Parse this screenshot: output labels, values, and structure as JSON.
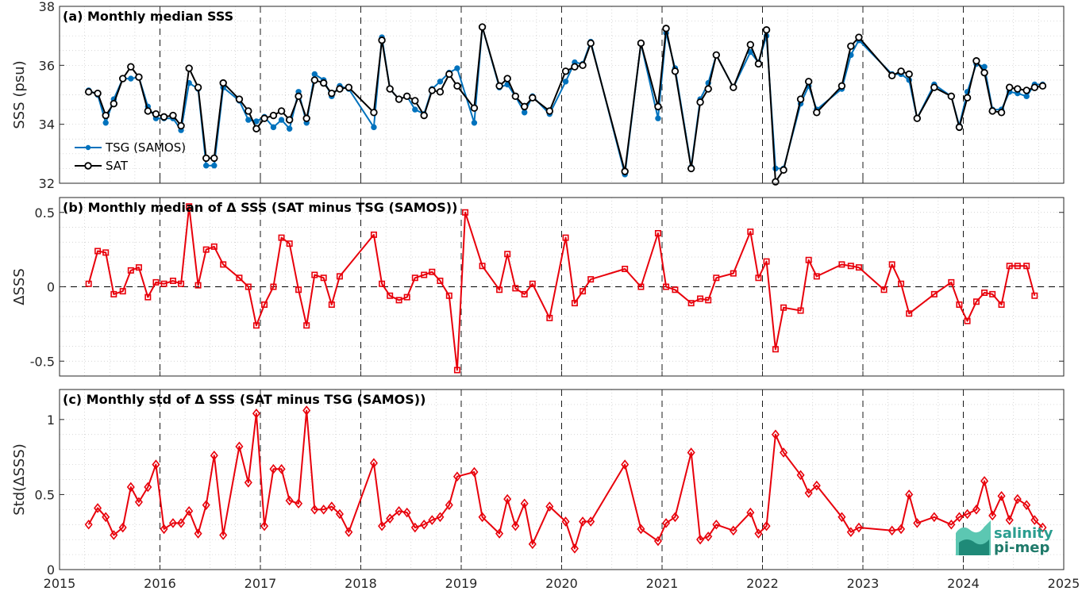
{
  "chart_data": [
    {
      "type": "line",
      "title": "(a) Monthly median SSS",
      "ylabel": "SSS (psu)",
      "xlim": [
        2015,
        2025
      ],
      "ylim": [
        32,
        38
      ],
      "yticks": [
        32,
        34,
        36,
        38
      ],
      "ytick_labels": [
        "32",
        "34",
        "36",
        "38"
      ],
      "grid": true,
      "legend": "left",
      "series": [
        {
          "name": "TSG (SAMOS)",
          "color": "#0072BD",
          "marker": "dot",
          "x": [
            2015.29,
            2015.38,
            2015.46,
            2015.54,
            2015.63,
            2015.71,
            2015.79,
            2015.88,
            2015.96,
            2016.04,
            2016.13,
            2016.21,
            2016.29,
            2016.38,
            2016.46,
            2016.54,
            2016.63,
            2016.79,
            2016.88,
            2016.96,
            2017.04,
            2017.13,
            2017.21,
            2017.29,
            2017.38,
            2017.46,
            2017.54,
            2017.63,
            2017.71,
            2017.79,
            2017.88,
            2018.13,
            2018.21,
            2018.29,
            2018.38,
            2018.46,
            2018.54,
            2018.63,
            2018.71,
            2018.79,
            2018.88,
            2018.96,
            2019.13,
            2019.21,
            2019.38,
            2019.46,
            2019.54,
            2019.63,
            2019.71,
            2019.88,
            2020.04,
            2020.13,
            2020.21,
            2020.29,
            2020.63,
            2020.79,
            2020.96,
            2021.04,
            2021.13,
            2021.29,
            2021.38,
            2021.46,
            2021.54,
            2021.71,
            2021.88,
            2021.96,
            2022.04,
            2022.13,
            2022.21,
            2022.38,
            2022.46,
            2022.54,
            2022.79,
            2022.88,
            2022.96,
            2023.29,
            2023.38,
            2023.46,
            2023.54,
            2023.71,
            2023.88,
            2023.96,
            2024.04,
            2024.13,
            2024.21,
            2024.29,
            2024.38,
            2024.46,
            2024.54,
            2024.63,
            2024.71,
            2024.79
          ],
          "y": [
            35.15,
            35.0,
            34.05,
            34.85,
            35.55,
            35.55,
            35.6,
            34.6,
            34.2,
            34.2,
            34.2,
            33.8,
            35.4,
            35.2,
            32.6,
            32.6,
            35.25,
            34.8,
            34.15,
            34.1,
            34.25,
            33.9,
            34.15,
            33.85,
            35.1,
            34.05,
            35.7,
            35.5,
            34.95,
            35.3,
            35.2,
            33.9,
            36.95,
            35.2,
            34.85,
            34.95,
            34.5,
            34.35,
            35.2,
            35.45,
            35.75,
            35.9,
            34.05,
            37.3,
            35.25,
            35.35,
            34.95,
            34.4,
            34.95,
            34.35,
            35.45,
            36.1,
            36.05,
            36.8,
            32.3,
            36.75,
            34.2,
            37.1,
            35.9,
            32.55,
            34.85,
            35.4,
            36.35,
            35.25,
            36.45,
            36.1,
            37.0,
            32.5,
            32.5,
            34.7,
            35.3,
            34.5,
            35.2,
            36.35,
            36.85,
            35.7,
            35.7,
            35.5,
            34.2,
            35.35,
            34.95,
            33.95,
            35.1,
            36.05,
            35.95,
            34.5,
            34.5,
            35.1,
            35.05,
            34.95,
            35.35,
            35.35
          ]
        },
        {
          "name": "SAT",
          "color": "#000000",
          "marker": "circle",
          "x": [
            2015.29,
            2015.38,
            2015.46,
            2015.54,
            2015.63,
            2015.71,
            2015.79,
            2015.88,
            2015.96,
            2016.04,
            2016.13,
            2016.21,
            2016.29,
            2016.38,
            2016.46,
            2016.54,
            2016.63,
            2016.79,
            2016.88,
            2016.96,
            2017.04,
            2017.13,
            2017.21,
            2017.29,
            2017.38,
            2017.46,
            2017.54,
            2017.63,
            2017.71,
            2017.79,
            2017.88,
            2018.13,
            2018.21,
            2018.29,
            2018.38,
            2018.46,
            2018.54,
            2018.63,
            2018.71,
            2018.79,
            2018.88,
            2018.96,
            2019.13,
            2019.21,
            2019.38,
            2019.46,
            2019.54,
            2019.63,
            2019.71,
            2019.88,
            2020.04,
            2020.13,
            2020.21,
            2020.29,
            2020.63,
            2020.79,
            2020.96,
            2021.04,
            2021.13,
            2021.29,
            2021.38,
            2021.46,
            2021.54,
            2021.71,
            2021.88,
            2021.96,
            2022.04,
            2022.13,
            2022.21,
            2022.38,
            2022.46,
            2022.54,
            2022.79,
            2022.88,
            2022.96,
            2023.29,
            2023.38,
            2023.46,
            2023.54,
            2023.71,
            2023.88,
            2023.96,
            2024.04,
            2024.13,
            2024.21,
            2024.29,
            2024.38,
            2024.46,
            2024.54,
            2024.63,
            2024.71,
            2024.79
          ],
          "y": [
            35.1,
            35.05,
            34.3,
            34.7,
            35.55,
            35.95,
            35.6,
            34.45,
            34.35,
            34.25,
            34.3,
            33.95,
            35.9,
            35.25,
            32.85,
            32.85,
            35.4,
            34.85,
            34.45,
            33.85,
            34.2,
            34.3,
            34.45,
            34.15,
            34.95,
            34.2,
            35.5,
            35.4,
            35.05,
            35.2,
            35.25,
            34.4,
            36.85,
            35.2,
            34.85,
            34.95,
            34.8,
            34.3,
            35.15,
            35.1,
            35.7,
            35.3,
            34.55,
            37.3,
            35.3,
            35.55,
            34.95,
            34.6,
            34.9,
            34.45,
            35.8,
            35.95,
            36.0,
            36.75,
            32.4,
            36.75,
            34.6,
            37.25,
            35.8,
            32.5,
            34.75,
            35.2,
            36.35,
            35.25,
            36.7,
            36.05,
            37.2,
            32.05,
            32.45,
            34.85,
            35.45,
            34.4,
            35.3,
            36.65,
            36.95,
            35.65,
            35.8,
            35.7,
            34.2,
            35.25,
            34.95,
            33.9,
            34.9,
            36.15,
            35.75,
            34.45,
            34.4,
            35.25,
            35.2,
            35.15,
            35.25,
            35.3
          ]
        }
      ]
    },
    {
      "type": "line",
      "title": "(b) Monthly median of Δ SSS (SAT minus TSG (SAMOS))",
      "ylabel": "ΔSSS",
      "xlim": [
        2015,
        2025
      ],
      "ylim": [
        -0.6,
        0.6
      ],
      "yticks": [
        -0.5,
        0,
        0.5
      ],
      "ytick_labels": [
        "-0.5",
        "0",
        "0.5"
      ],
      "grid": true,
      "zero_line": true,
      "series": [
        {
          "name": "",
          "color": "#E8000B",
          "marker": "square",
          "x": [
            2015.29,
            2015.38,
            2015.46,
            2015.54,
            2015.63,
            2015.71,
            2015.79,
            2015.88,
            2015.96,
            2016.04,
            2016.13,
            2016.21,
            2016.29,
            2016.38,
            2016.46,
            2016.54,
            2016.63,
            2016.79,
            2016.88,
            2016.96,
            2017.04,
            2017.13,
            2017.21,
            2017.29,
            2017.38,
            2017.46,
            2017.54,
            2017.63,
            2017.71,
            2017.79,
            2018.13,
            2018.21,
            2018.29,
            2018.38,
            2018.46,
            2018.54,
            2018.63,
            2018.71,
            2018.79,
            2018.88,
            2018.96,
            2019.04,
            2019.21,
            2019.38,
            2019.46,
            2019.54,
            2019.63,
            2019.71,
            2019.88,
            2020.04,
            2020.13,
            2020.21,
            2020.29,
            2020.63,
            2020.79,
            2020.96,
            2021.04,
            2021.13,
            2021.29,
            2021.38,
            2021.46,
            2021.54,
            2021.71,
            2021.88,
            2021.96,
            2022.04,
            2022.13,
            2022.21,
            2022.38,
            2022.46,
            2022.54,
            2022.79,
            2022.88,
            2022.96,
            2023.21,
            2023.29,
            2023.38,
            2023.46,
            2023.71,
            2023.88,
            2023.96,
            2024.04,
            2024.13,
            2024.21,
            2024.29,
            2024.38,
            2024.46,
            2024.54,
            2024.63,
            2024.71
          ],
          "y": [
            0.02,
            0.24,
            0.23,
            -0.05,
            -0.03,
            0.11,
            0.13,
            -0.07,
            0.03,
            0.02,
            0.04,
            0.02,
            0.54,
            0.01,
            0.25,
            0.27,
            0.15,
            0.06,
            0.0,
            -0.26,
            -0.12,
            0.0,
            0.33,
            0.29,
            -0.02,
            -0.26,
            0.08,
            0.06,
            -0.12,
            0.07,
            0.35,
            0.02,
            -0.06,
            -0.09,
            -0.07,
            0.06,
            0.08,
            0.1,
            0.04,
            -0.06,
            -0.56,
            0.5,
            0.14,
            -0.02,
            0.22,
            -0.01,
            -0.05,
            0.02,
            -0.21,
            0.33,
            -0.11,
            -0.03,
            0.05,
            0.12,
            0.0,
            0.36,
            0.0,
            -0.02,
            -0.11,
            -0.08,
            -0.09,
            0.06,
            0.09,
            0.37,
            0.06,
            0.17,
            -0.42,
            -0.14,
            -0.16,
            0.18,
            0.07,
            0.15,
            0.14,
            0.13,
            -0.02,
            0.15,
            0.02,
            -0.18,
            -0.05,
            0.03,
            -0.12,
            -0.23,
            -0.1,
            -0.04,
            -0.05,
            -0.12,
            0.14,
            0.14,
            0.14,
            -0.06
          ]
        }
      ]
    },
    {
      "type": "line",
      "title": "(c) Monthly std of Δ SSS (SAT minus TSG (SAMOS))",
      "ylabel": "Std(ΔSSS)",
      "xlim": [
        2015,
        2025
      ],
      "ylim": [
        0,
        1.2
      ],
      "yticks": [
        0,
        0.5,
        1
      ],
      "ytick_labels": [
        "0",
        "0.5",
        "1"
      ],
      "grid": true,
      "series": [
        {
          "name": "",
          "color": "#E8000B",
          "marker": "diamond",
          "x": [
            2015.29,
            2015.38,
            2015.46,
            2015.54,
            2015.63,
            2015.71,
            2015.79,
            2015.88,
            2015.96,
            2016.04,
            2016.13,
            2016.21,
            2016.29,
            2016.38,
            2016.46,
            2016.54,
            2016.63,
            2016.79,
            2016.88,
            2016.96,
            2017.04,
            2017.13,
            2017.21,
            2017.29,
            2017.38,
            2017.46,
            2017.54,
            2017.63,
            2017.71,
            2017.79,
            2017.88,
            2018.13,
            2018.21,
            2018.29,
            2018.38,
            2018.46,
            2018.54,
            2018.63,
            2018.71,
            2018.79,
            2018.88,
            2018.96,
            2019.13,
            2019.21,
            2019.38,
            2019.46,
            2019.54,
            2019.63,
            2019.71,
            2019.88,
            2020.04,
            2020.13,
            2020.21,
            2020.29,
            2020.63,
            2020.79,
            2020.96,
            2021.04,
            2021.13,
            2021.29,
            2021.38,
            2021.46,
            2021.54,
            2021.71,
            2021.88,
            2021.96,
            2022.04,
            2022.13,
            2022.21,
            2022.38,
            2022.46,
            2022.54,
            2022.79,
            2022.88,
            2022.96,
            2023.29,
            2023.38,
            2023.46,
            2023.54,
            2023.71,
            2023.88,
            2023.96,
            2024.04,
            2024.13,
            2024.21,
            2024.29,
            2024.38,
            2024.46,
            2024.54,
            2024.63,
            2024.71,
            2024.79
          ],
          "y": [
            0.3,
            0.41,
            0.35,
            0.23,
            0.28,
            0.55,
            0.45,
            0.55,
            0.7,
            0.27,
            0.31,
            0.31,
            0.39,
            0.24,
            0.43,
            0.76,
            0.23,
            0.82,
            0.58,
            1.04,
            0.29,
            0.67,
            0.67,
            0.46,
            0.44,
            1.06,
            0.4,
            0.4,
            0.42,
            0.37,
            0.25,
            0.71,
            0.29,
            0.34,
            0.39,
            0.38,
            0.28,
            0.3,
            0.33,
            0.35,
            0.43,
            0.62,
            0.65,
            0.35,
            0.24,
            0.47,
            0.29,
            0.44,
            0.17,
            0.42,
            0.32,
            0.14,
            0.32,
            0.32,
            0.7,
            0.27,
            0.19,
            0.31,
            0.35,
            0.78,
            0.2,
            0.22,
            0.3,
            0.26,
            0.38,
            0.24,
            0.29,
            0.9,
            0.78,
            0.63,
            0.51,
            0.56,
            0.35,
            0.25,
            0.28,
            0.26,
            0.27,
            0.5,
            0.31,
            0.35,
            0.3,
            0.35,
            0.37,
            0.4,
            0.59,
            0.36,
            0.49,
            0.33,
            0.47,
            0.43,
            0.33,
            0.28
          ]
        }
      ]
    }
  ],
  "xaxis": {
    "ticks": [
      2015,
      2016,
      2017,
      2018,
      2019,
      2020,
      2021,
      2022,
      2023,
      2024,
      2025
    ],
    "tick_labels": [
      "2015",
      "2016",
      "2017",
      "2018",
      "2019",
      "2020",
      "2021",
      "2022",
      "2023",
      "2024",
      "2025"
    ]
  },
  "logo": {
    "line1": "salinity",
    "line2": "pi-mep",
    "color": "#2a9d8f"
  }
}
